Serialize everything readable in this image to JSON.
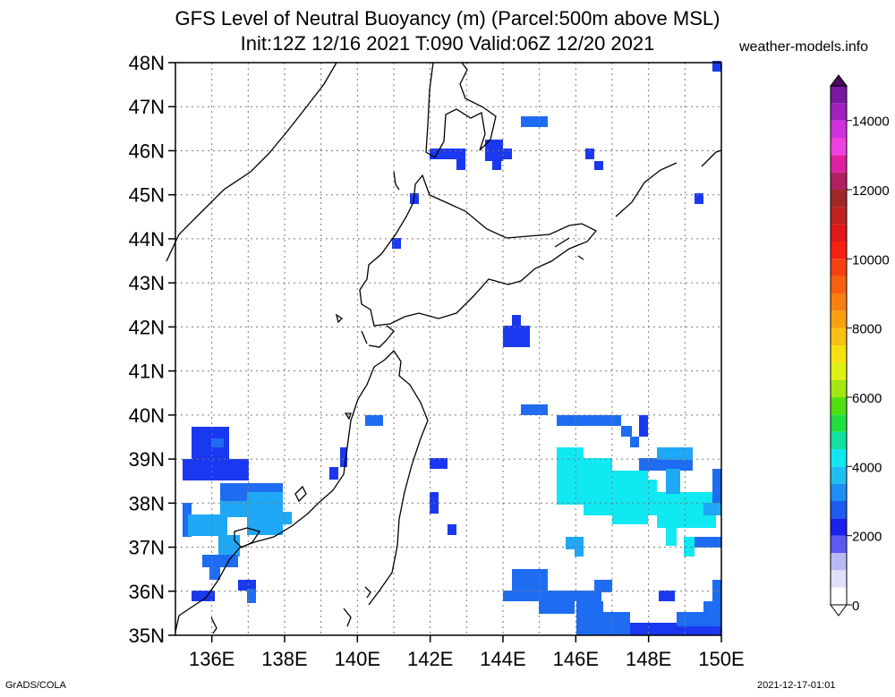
{
  "header": {
    "title_line1": "GFS Level of Neutral Buoyancy (m) (Parcel:500m above MSL)",
    "title_line2": "Init:12Z 12/16 2021 T:090 Valid:06Z 12/20 2021",
    "site": "weather-models.info"
  },
  "footer": {
    "credit": "GrADS/COLA",
    "timestamp": "2021-12-17-01:01"
  },
  "map": {
    "lat_labels": [
      "35N",
      "36N",
      "37N",
      "38N",
      "39N",
      "40N",
      "41N",
      "42N",
      "43N",
      "44N",
      "45N",
      "46N",
      "47N",
      "48N"
    ],
    "lon_labels": [
      "136E",
      "138E",
      "140E",
      "142E",
      "144E",
      "146E",
      "148E",
      "150E"
    ],
    "lat_range": [
      35,
      48
    ],
    "lon_range": [
      135,
      150
    ],
    "grid": true,
    "colors": {
      "blue": "#1a38f0",
      "mid_blue": "#1e6cf2",
      "light_blue": "#1ea8f5",
      "cyan": "#10e8f2"
    }
  },
  "colorbar": {
    "labels": [
      "0",
      "2000",
      "4000",
      "6000",
      "8000",
      "10000",
      "12000",
      "14000"
    ],
    "min": 0,
    "max": 15000
  }
}
